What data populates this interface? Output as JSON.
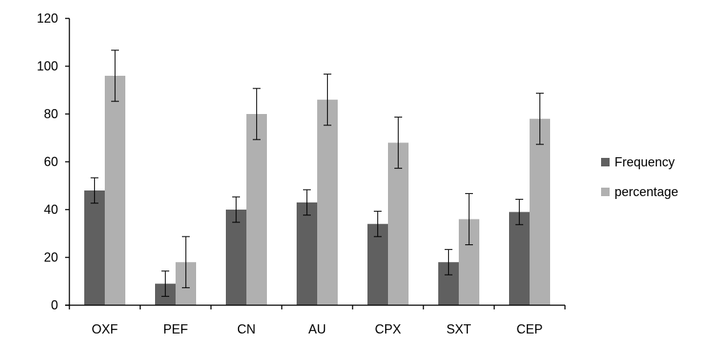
{
  "chart_data": {
    "type": "bar",
    "title": "",
    "xlabel": "",
    "ylabel": "",
    "categories": [
      "OXF",
      "PEF",
      "CN",
      "AU",
      "CPX",
      "SXT",
      "CEP"
    ],
    "ylim": [
      0,
      120
    ],
    "yticks": [
      0,
      20,
      40,
      60,
      80,
      100,
      120
    ],
    "grid": false,
    "legend_position": "right",
    "series": [
      {
        "name": "Frequency",
        "color": "#606060",
        "values": [
          48,
          9,
          40,
          43,
          34,
          18,
          39
        ],
        "error": [
          5.3,
          5.3,
          5.3,
          5.3,
          5.3,
          5.3,
          5.3
        ]
      },
      {
        "name": "percentage",
        "color": "#b0b0b0",
        "values": [
          96,
          18,
          80,
          86,
          68,
          36,
          78
        ],
        "error": [
          10.7,
          10.7,
          10.7,
          10.7,
          10.7,
          10.7,
          10.7
        ]
      }
    ]
  }
}
